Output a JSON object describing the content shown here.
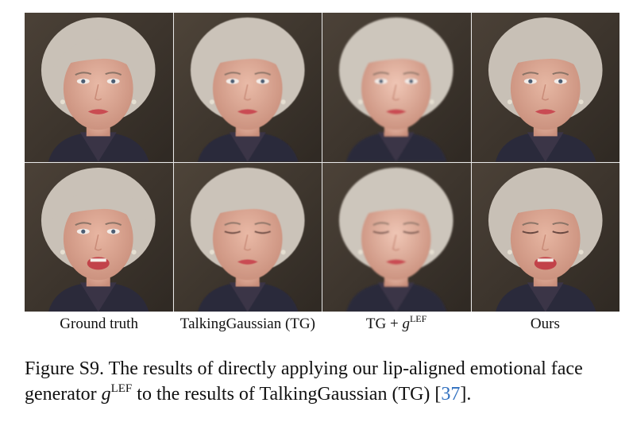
{
  "figure": {
    "columns": [
      {
        "label": "Ground truth"
      },
      {
        "label": "TalkingGaussian (TG)"
      },
      {
        "label_prefix": "TG + ",
        "label_var": "g",
        "label_sup": "LEF"
      },
      {
        "label": "Ours"
      }
    ],
    "rows": 2,
    "caption": {
      "prefix": "Figure S9. The results of directly applying our lip-aligned emotional face generator ",
      "var": "g",
      "sup": "LEF",
      "middle": " to the results of TalkingGaussian (TG) [",
      "cite": "37",
      "suffix": "]."
    },
    "colors": {
      "citation": "#2f6fbf",
      "background_dark": "#4a4036"
    }
  }
}
